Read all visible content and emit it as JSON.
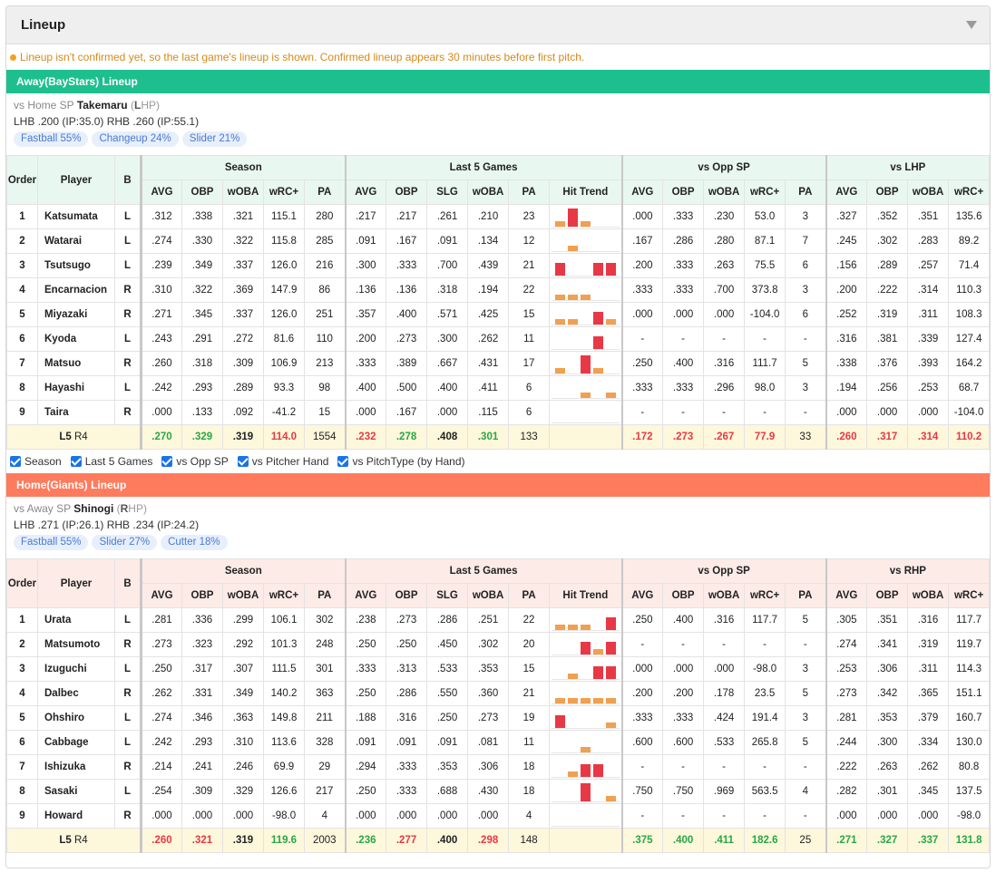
{
  "panel": {
    "title": "Lineup"
  },
  "notice": "Lineup isn't confirmed yet, so the last game's lineup is shown. Confirmed lineup appears 30 minutes before first pitch.",
  "colors": {
    "away": "#1dbf8f",
    "home": "#ff7b5e",
    "good": "#28a745",
    "bad": "#e83845",
    "hit": "#e83845",
    "miss": "#f0a050"
  },
  "headers": {
    "order": "Order",
    "player": "Player",
    "b": "B",
    "season": "Season",
    "last5": "Last 5 Games",
    "vs_opp_sp": "vs Opp SP",
    "season_cols": [
      "AVG",
      "OBP",
      "wOBA",
      "wRC+",
      "PA"
    ],
    "last5_cols": [
      "AVG",
      "OBP",
      "SLG",
      "wOBA",
      "PA",
      "Hit Trend"
    ],
    "opp_cols": [
      "AVG",
      "OBP",
      "wOBA",
      "wRC+",
      "PA"
    ],
    "hand_cols": [
      "AVG",
      "OBP",
      "wOBA",
      "wRC+"
    ]
  },
  "checks": [
    "Season",
    "Last 5 Games",
    "vs Opp SP",
    "vs Pitcher Hand",
    "vs PitchType (by Hand)"
  ],
  "away": {
    "bar": "Away(BayStars) Lineup",
    "sp_prefix": "vs Home SP",
    "sp_name": "Takemaru",
    "sp_hand_letter": "L",
    "sp_hand_rest": "HP",
    "splits": "LHB .200 (IP:35.0)  RHB .260 (IP:55.1)",
    "pitches": [
      "Fastball 55%",
      "Changeup 24%",
      "Slider 21%"
    ],
    "hand_header": "vs LHP",
    "rows": [
      {
        "o": "1",
        "p": "Katsumata",
        "b": "L",
        "s": [
          ".312",
          ".338",
          ".321",
          "115.1",
          "280"
        ],
        "l": [
          ".217",
          ".217",
          ".261",
          ".210",
          "23"
        ],
        "t": [
          "m",
          "h",
          "m",
          "n",
          "n"
        ],
        "v": [
          ".000",
          ".333",
          ".230",
          "53.0",
          "3"
        ],
        "h": [
          ".327",
          ".352",
          ".351",
          "135.6"
        ]
      },
      {
        "o": "2",
        "p": "Watarai",
        "b": "L",
        "s": [
          ".274",
          ".330",
          ".322",
          "115.8",
          "285"
        ],
        "l": [
          ".091",
          ".167",
          ".091",
          ".134",
          "12"
        ],
        "t": [
          "n",
          "m",
          "n",
          "n",
          "n"
        ],
        "v": [
          ".167",
          ".286",
          ".280",
          "87.1",
          "7"
        ],
        "h": [
          ".245",
          ".302",
          ".283",
          "89.2"
        ]
      },
      {
        "o": "3",
        "p": "Tsutsugo",
        "b": "L",
        "s": [
          ".239",
          ".349",
          ".337",
          "126.0",
          "216"
        ],
        "l": [
          ".300",
          ".333",
          ".700",
          ".439",
          "21"
        ],
        "t": [
          "h1",
          "n",
          "n",
          "h1",
          "h1"
        ],
        "v": [
          ".200",
          ".333",
          ".263",
          "75.5",
          "6"
        ],
        "h": [
          ".156",
          ".289",
          ".257",
          "71.4"
        ]
      },
      {
        "o": "4",
        "p": "Encarnacion",
        "b": "R",
        "s": [
          ".310",
          ".322",
          ".369",
          "147.9",
          "86"
        ],
        "l": [
          ".136",
          ".136",
          ".318",
          ".194",
          "22"
        ],
        "t": [
          "m",
          "m",
          "m",
          "n",
          "n"
        ],
        "v": [
          ".333",
          ".333",
          ".700",
          "373.8",
          "3"
        ],
        "h": [
          ".200",
          ".222",
          ".314",
          "110.3"
        ]
      },
      {
        "o": "5",
        "p": "Miyazaki",
        "b": "R",
        "s": [
          ".271",
          ".345",
          ".337",
          "126.0",
          "251"
        ],
        "l": [
          ".357",
          ".400",
          ".571",
          ".425",
          "15"
        ],
        "t": [
          "m",
          "m",
          "n",
          "h1",
          "m"
        ],
        "v": [
          ".000",
          ".000",
          ".000",
          "-104.0",
          "6"
        ],
        "h": [
          ".252",
          ".319",
          ".311",
          "108.3"
        ]
      },
      {
        "o": "6",
        "p": "Kyoda",
        "b": "L",
        "s": [
          ".243",
          ".291",
          ".272",
          "81.6",
          "110"
        ],
        "l": [
          ".200",
          ".273",
          ".300",
          ".262",
          "11"
        ],
        "t": [
          "n",
          "n",
          "n",
          "h1",
          "n"
        ],
        "v": [
          "-",
          "-",
          "-",
          "-",
          "-"
        ],
        "h": [
          ".316",
          ".381",
          ".339",
          "127.4"
        ]
      },
      {
        "o": "7",
        "p": "Matsuo",
        "b": "R",
        "s": [
          ".260",
          ".318",
          ".309",
          "106.9",
          "213"
        ],
        "l": [
          ".333",
          ".389",
          ".667",
          ".431",
          "17"
        ],
        "t": [
          "m",
          "n",
          "h",
          "m",
          "n"
        ],
        "v": [
          ".250",
          ".400",
          ".316",
          "111.7",
          "5"
        ],
        "h": [
          ".338",
          ".376",
          ".393",
          "164.2"
        ]
      },
      {
        "o": "8",
        "p": "Hayashi",
        "b": "L",
        "s": [
          ".242",
          ".293",
          ".289",
          "93.3",
          "98"
        ],
        "l": [
          ".400",
          ".500",
          ".400",
          ".411",
          "6"
        ],
        "t": [
          "n",
          "n",
          "m",
          "n",
          "m"
        ],
        "v": [
          ".333",
          ".333",
          ".296",
          "98.0",
          "3"
        ],
        "h": [
          ".194",
          ".256",
          ".253",
          "68.7"
        ]
      },
      {
        "o": "9",
        "p": "Taira",
        "b": "R",
        "s": [
          ".000",
          ".133",
          ".092",
          "-41.2",
          "15"
        ],
        "l": [
          ".000",
          ".167",
          ".000",
          ".115",
          "6"
        ],
        "t": [
          "n",
          "n",
          "n",
          "n",
          "n"
        ],
        "v": [
          "-",
          "-",
          "-",
          "-",
          "-"
        ],
        "h": [
          ".000",
          ".000",
          ".000",
          "-104.0"
        ]
      }
    ],
    "summary": {
      "label_a": "L5",
      "label_b": "R4",
      "s": [
        {
          "v": ".270",
          "c": "good"
        },
        {
          "v": ".329",
          "c": "good"
        },
        {
          "v": ".319",
          "c": ""
        },
        {
          "v": "114.0",
          "c": "bad"
        },
        {
          "v": "1554",
          "c": "plain"
        }
      ],
      "l": [
        {
          "v": ".232",
          "c": "bad"
        },
        {
          "v": ".278",
          "c": "good"
        },
        {
          "v": ".408",
          "c": ""
        },
        {
          "v": ".301",
          "c": "good"
        },
        {
          "v": "133",
          "c": "plain"
        }
      ],
      "v": [
        {
          "v": ".172",
          "c": "bad"
        },
        {
          "v": ".273",
          "c": "bad"
        },
        {
          "v": ".267",
          "c": "bad"
        },
        {
          "v": "77.9",
          "c": "bad"
        },
        {
          "v": "33",
          "c": "plain"
        }
      ],
      "h": [
        {
          "v": ".260",
          "c": "bad"
        },
        {
          "v": ".317",
          "c": "bad"
        },
        {
          "v": ".314",
          "c": "bad"
        },
        {
          "v": "110.2",
          "c": "bad"
        }
      ]
    }
  },
  "home": {
    "bar": "Home(Giants) Lineup",
    "sp_prefix": "vs Away SP",
    "sp_name": "Shinogi",
    "sp_hand_letter": "R",
    "sp_hand_rest": "HP",
    "splits": "LHB .271 (IP:26.1)  RHB .234 (IP:24.2)",
    "pitches": [
      "Fastball 55%",
      "Slider 27%",
      "Cutter 18%"
    ],
    "hand_header": "vs RHP",
    "rows": [
      {
        "o": "1",
        "p": "Urata",
        "b": "L",
        "s": [
          ".281",
          ".336",
          ".299",
          "106.1",
          "302"
        ],
        "l": [
          ".238",
          ".273",
          ".286",
          ".251",
          "22"
        ],
        "t": [
          "m",
          "m",
          "m",
          "n",
          "h1"
        ],
        "v": [
          ".250",
          ".400",
          ".316",
          "117.7",
          "5"
        ],
        "h": [
          ".305",
          ".351",
          ".316",
          "117.7"
        ]
      },
      {
        "o": "2",
        "p": "Matsumoto",
        "b": "R",
        "s": [
          ".273",
          ".323",
          ".292",
          "101.3",
          "248"
        ],
        "l": [
          ".250",
          ".250",
          ".450",
          ".302",
          "20"
        ],
        "t": [
          "n",
          "n",
          "h1",
          "m",
          "h1"
        ],
        "v": [
          "-",
          "-",
          "-",
          "-",
          "-"
        ],
        "h": [
          ".274",
          ".341",
          ".319",
          "119.7"
        ]
      },
      {
        "o": "3",
        "p": "Izuguchi",
        "b": "L",
        "s": [
          ".250",
          ".317",
          ".307",
          "111.5",
          "301"
        ],
        "l": [
          ".333",
          ".313",
          ".533",
          ".353",
          "15"
        ],
        "t": [
          "n",
          "m",
          "n",
          "h1",
          "h1"
        ],
        "v": [
          ".000",
          ".000",
          ".000",
          "-98.0",
          "3"
        ],
        "h": [
          ".253",
          ".306",
          ".311",
          "114.3"
        ]
      },
      {
        "o": "4",
        "p": "Dalbec",
        "b": "R",
        "s": [
          ".262",
          ".331",
          ".349",
          "140.2",
          "363"
        ],
        "l": [
          ".250",
          ".286",
          ".550",
          ".360",
          "21"
        ],
        "t": [
          "m",
          "m",
          "m",
          "m",
          "m"
        ],
        "v": [
          ".200",
          ".200",
          ".178",
          "23.5",
          "5"
        ],
        "h": [
          ".273",
          ".342",
          ".365",
          "151.1"
        ]
      },
      {
        "o": "5",
        "p": "Ohshiro",
        "b": "L",
        "s": [
          ".274",
          ".346",
          ".363",
          "149.8",
          "211"
        ],
        "l": [
          ".188",
          ".316",
          ".250",
          ".273",
          "19"
        ],
        "t": [
          "h1",
          "n",
          "n",
          "n",
          "m"
        ],
        "v": [
          ".333",
          ".333",
          ".424",
          "191.4",
          "3"
        ],
        "h": [
          ".281",
          ".353",
          ".379",
          "160.7"
        ]
      },
      {
        "o": "6",
        "p": "Cabbage",
        "b": "L",
        "s": [
          ".242",
          ".293",
          ".310",
          "113.6",
          "328"
        ],
        "l": [
          ".091",
          ".091",
          ".091",
          ".081",
          "11"
        ],
        "t": [
          "n",
          "n",
          "m",
          "n",
          "n"
        ],
        "v": [
          ".600",
          ".600",
          ".533",
          "265.8",
          "5"
        ],
        "h": [
          ".244",
          ".300",
          ".334",
          "130.0"
        ]
      },
      {
        "o": "7",
        "p": "Ishizuka",
        "b": "R",
        "s": [
          ".214",
          ".241",
          ".246",
          "69.9",
          "29"
        ],
        "l": [
          ".294",
          ".333",
          ".353",
          ".306",
          "18"
        ],
        "t": [
          "n",
          "m",
          "h1",
          "h1",
          "n"
        ],
        "v": [
          "-",
          "-",
          "-",
          "-",
          "-"
        ],
        "h": [
          ".222",
          ".263",
          ".262",
          "80.8"
        ]
      },
      {
        "o": "8",
        "p": "Sasaki",
        "b": "L",
        "s": [
          ".254",
          ".309",
          ".329",
          "126.6",
          "217"
        ],
        "l": [
          ".250",
          ".333",
          ".688",
          ".430",
          "18"
        ],
        "t": [
          "n",
          "n",
          "h",
          "n",
          "m"
        ],
        "v": [
          ".750",
          ".750",
          ".969",
          "563.5",
          "4"
        ],
        "h": [
          ".282",
          ".301",
          ".345",
          "137.5"
        ]
      },
      {
        "o": "9",
        "p": "Howard",
        "b": "R",
        "s": [
          ".000",
          ".000",
          ".000",
          "-98.0",
          "4"
        ],
        "l": [
          ".000",
          ".000",
          ".000",
          ".000",
          "4"
        ],
        "t": [
          "n",
          "n",
          "n",
          "n",
          "n"
        ],
        "v": [
          "-",
          "-",
          "-",
          "-",
          "-"
        ],
        "h": [
          ".000",
          ".000",
          ".000",
          "-98.0"
        ]
      }
    ],
    "summary": {
      "label_a": "L5",
      "label_b": "R4",
      "s": [
        {
          "v": ".260",
          "c": "bad"
        },
        {
          "v": ".321",
          "c": "bad"
        },
        {
          "v": ".319",
          "c": ""
        },
        {
          "v": "119.6",
          "c": "good"
        },
        {
          "v": "2003",
          "c": "plain"
        }
      ],
      "l": [
        {
          "v": ".236",
          "c": "good"
        },
        {
          "v": ".277",
          "c": "bad"
        },
        {
          "v": ".400",
          "c": ""
        },
        {
          "v": ".298",
          "c": "bad"
        },
        {
          "v": "148",
          "c": "plain"
        }
      ],
      "v": [
        {
          "v": ".375",
          "c": "good"
        },
        {
          "v": ".400",
          "c": "good"
        },
        {
          "v": ".411",
          "c": "good"
        },
        {
          "v": "182.6",
          "c": "good"
        },
        {
          "v": "25",
          "c": "plain"
        }
      ],
      "h": [
        {
          "v": ".271",
          "c": "good"
        },
        {
          "v": ".327",
          "c": "good"
        },
        {
          "v": ".337",
          "c": "good"
        },
        {
          "v": "131.8",
          "c": "good"
        }
      ]
    }
  }
}
